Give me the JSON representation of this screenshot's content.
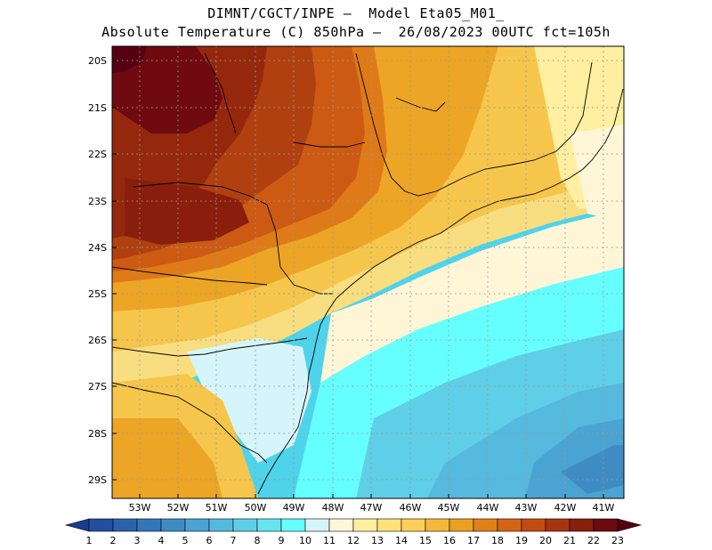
{
  "header": {
    "line1": "DIMNT/CGCT/INPE –  Model Eta05_M01_",
    "line2": "Absolute Temperature (C) 850hPa –  26/08/2023 00UTC fct=105h"
  },
  "map": {
    "lat_labels": [
      "20S",
      "21S",
      "22S",
      "23S",
      "24S",
      "25S",
      "26S",
      "27S",
      "28S",
      "29S"
    ],
    "lon_labels": [
      "53W",
      "52W",
      "51W",
      "50W",
      "49W",
      "48W",
      "47W",
      "46W",
      "45W",
      "44W",
      "43W",
      "42W",
      "41W"
    ],
    "grid": "dotted"
  },
  "legend": {
    "labels": [
      "1",
      "2",
      "3",
      "4",
      "5",
      "6",
      "7",
      "8",
      "9",
      "10",
      "11",
      "12",
      "13",
      "14",
      "15",
      "16",
      "17",
      "18",
      "19",
      "20",
      "21",
      "22",
      "23"
    ],
    "colors": [
      "#1a3d8f",
      "#22509e",
      "#2a62ac",
      "#3477b8",
      "#3f8cc4",
      "#4aa3d1",
      "#56b9de",
      "#5fcfe8",
      "#66e4f0",
      "#66ffff",
      "#d6f5fa",
      "#fff6d8",
      "#ffefa0",
      "#ffe27a",
      "#fcd05a",
      "#f4b83a",
      "#eca022",
      "#e2801a",
      "#d66414",
      "#c44c12",
      "#a8340e",
      "#8a1e0c",
      "#6e0a10",
      "#560012"
    ]
  }
}
